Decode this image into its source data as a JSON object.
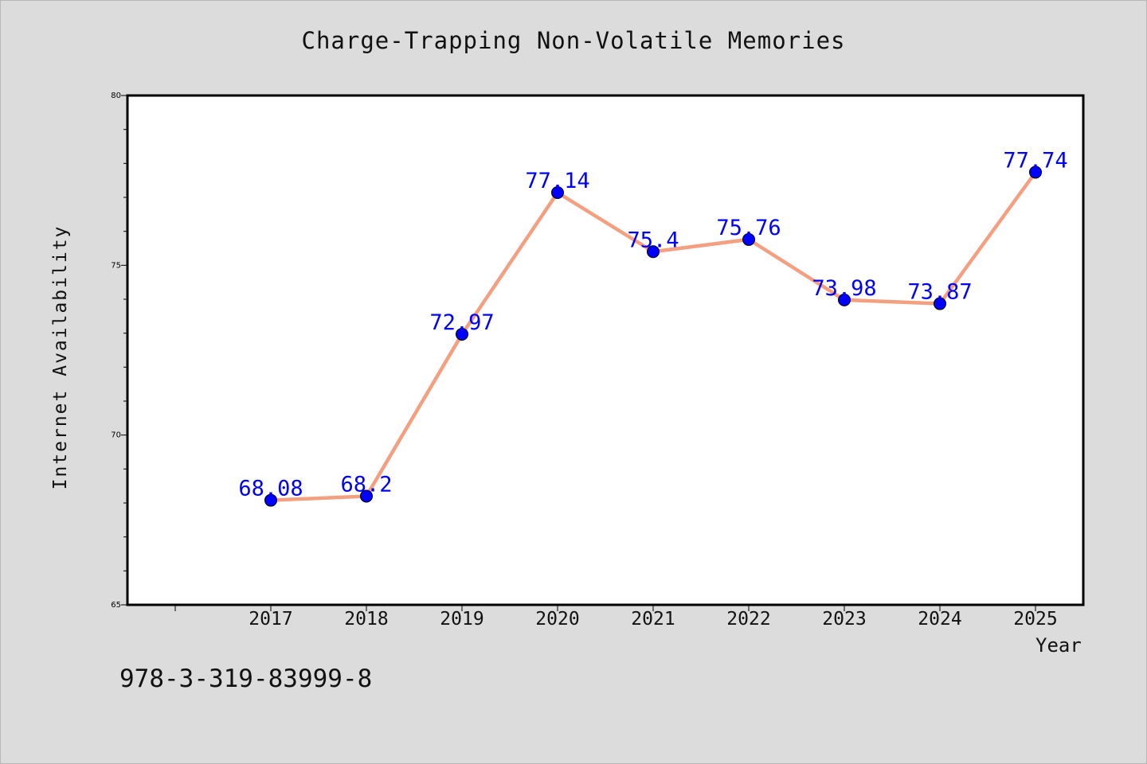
{
  "chart_data": {
    "type": "line",
    "title": "Charge-Trapping Non-Volatile Memories",
    "xlabel": "Year",
    "ylabel": "Internet Availability",
    "categories": [
      "2017",
      "2018",
      "2019",
      "2020",
      "2021",
      "2022",
      "2023",
      "2024",
      "2025"
    ],
    "series": [
      {
        "values": [
          68.08,
          68.2,
          72.97,
          77.14,
          75.4,
          75.76,
          73.98,
          73.87,
          77.74
        ],
        "labels": [
          "68.08",
          "68.2",
          "72.97",
          "77.14",
          "75.4",
          "75.76",
          "73.98",
          "73.87",
          "77.74"
        ],
        "line_color": "#f4a080",
        "marker_color": "#0000ff"
      }
    ],
    "ylim": [
      65,
      80
    ],
    "yticks": [
      "65",
      "70",
      "75",
      "80"
    ],
    "grid": false,
    "legend": "none",
    "label_color": "#0000ff"
  },
  "footer": {
    "isbn": "978-3-319-83999-8"
  }
}
